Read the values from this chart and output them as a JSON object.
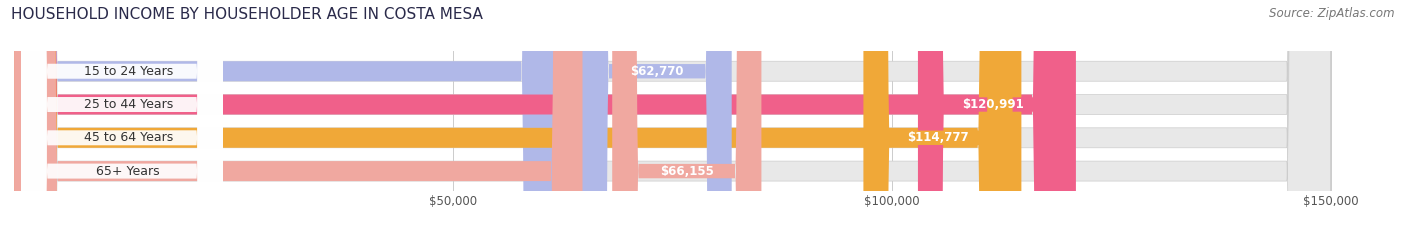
{
  "title": "HOUSEHOLD INCOME BY HOUSEHOLDER AGE IN COSTA MESA",
  "source": "Source: ZipAtlas.com",
  "categories": [
    "15 to 24 Years",
    "25 to 44 Years",
    "45 to 64 Years",
    "65+ Years"
  ],
  "values": [
    62770,
    120991,
    114777,
    66155
  ],
  "bar_colors": [
    "#b0b8e8",
    "#f0608a",
    "#f0a838",
    "#f0a8a0"
  ],
  "bar_bg_color": "#e8e8e8",
  "value_labels": [
    "$62,770",
    "$120,991",
    "$114,777",
    "$66,155"
  ],
  "label_inside": [
    false,
    true,
    true,
    false
  ],
  "xlim": [
    0,
    157000
  ],
  "x_max_bar": 150000,
  "xticks": [
    50000,
    100000,
    150000
  ],
  "xtick_labels": [
    "$50,000",
    "$100,000",
    "$150,000"
  ],
  "title_fontsize": 11,
  "source_fontsize": 8.5,
  "bar_label_fontsize": 8.5,
  "category_fontsize": 9,
  "background_color": "#ffffff"
}
